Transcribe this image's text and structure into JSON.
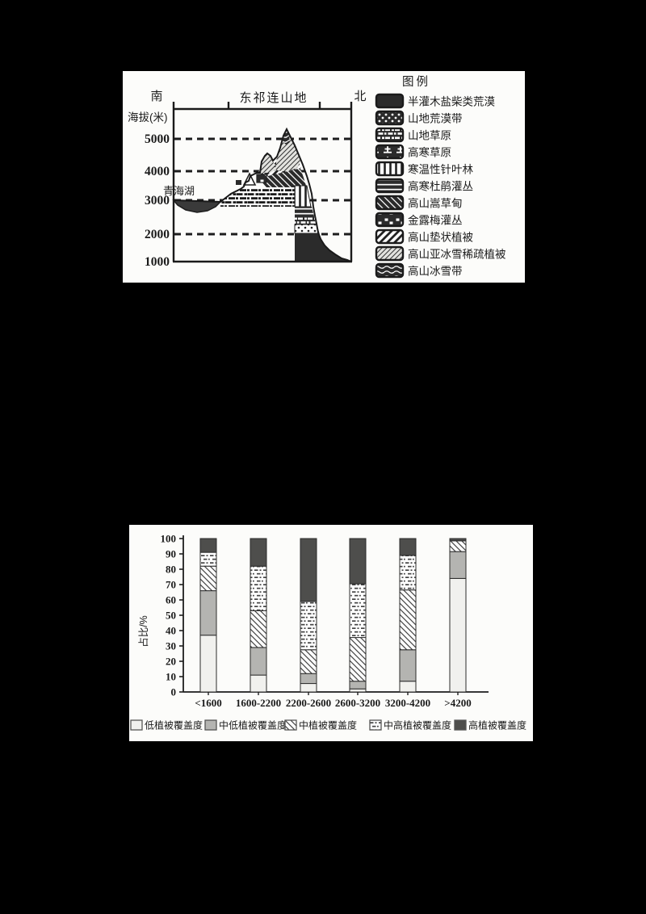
{
  "page": {
    "background": "#000000",
    "panel_color": "#fcfcfa",
    "ink_color": "#1d1d1d"
  },
  "fig1": {
    "range_title": "东祁连山地",
    "south_label": "南",
    "north_label": "北",
    "elevation_axis_label": "海拔(米)",
    "elevation_ticks": [
      "5000",
      "4000",
      "3000",
      "2000",
      "1000"
    ],
    "lake_label": "青海湖",
    "legend_title": "图例",
    "legend": [
      {
        "label": "半灌木盐柴类荒漠",
        "pattern": "solid-dark"
      },
      {
        "label": "山地荒漠带",
        "pattern": "dots-dark"
      },
      {
        "label": "山地草原",
        "pattern": "brick-dark"
      },
      {
        "label": "高寒草原",
        "pattern": "steppe-icon-dark"
      },
      {
        "label": "寒温性针叶林",
        "pattern": "vertical-lines"
      },
      {
        "label": "高寒杜鹃灌丛",
        "pattern": "horiz-lines-dark"
      },
      {
        "label": "高山嵩草甸",
        "pattern": "backslash-dark"
      },
      {
        "label": "金露梅灌丛",
        "pattern": "blob-dark"
      },
      {
        "label": "高山垫状植被",
        "pattern": "slash-thick"
      },
      {
        "label": "高山亚冰雪稀疏植被",
        "pattern": "slash-fine"
      },
      {
        "label": "高山冰雪带",
        "pattern": "wavy-dark"
      }
    ]
  },
  "chart_data": {
    "type": "bar",
    "stacked": true,
    "ylabel": "占比/%",
    "ylim": [
      0,
      100
    ],
    "ytick_step": 10,
    "grid": false,
    "legend_position": "bottom",
    "categories": [
      "<1600",
      "1600-2200",
      "2200-2600",
      "2600-3200",
      "3200-4200",
      ">4200"
    ],
    "series": [
      {
        "name": "低植被覆盖度",
        "pattern": "fill-light",
        "values": [
          37,
          11,
          5.5,
          2,
          7,
          74
        ]
      },
      {
        "name": "中低植被覆盖度",
        "pattern": "fill-gray",
        "values": [
          29,
          18,
          6.5,
          5,
          20.5,
          17.5
        ]
      },
      {
        "name": "中植被覆盖度",
        "pattern": "hatch-backslash",
        "values": [
          16,
          24,
          15.5,
          28.5,
          39,
          7
        ]
      },
      {
        "name": "中高植被覆盖度",
        "pattern": "dash-rows",
        "values": [
          9,
          29,
          31.5,
          35,
          22.5,
          0
        ]
      },
      {
        "name": "高植被覆盖度",
        "pattern": "fill-dark",
        "values": [
          9,
          18,
          41,
          29.5,
          11,
          1.5
        ]
      }
    ]
  }
}
